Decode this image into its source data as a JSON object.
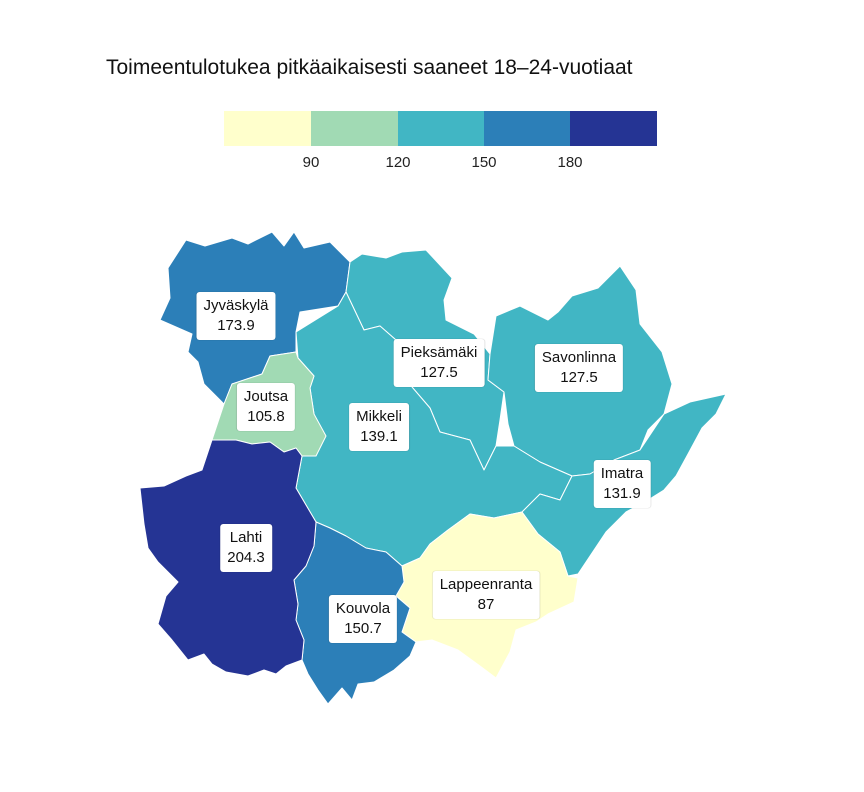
{
  "title": "Toimeentulotukea pitkäaikaisesti saaneet 18–24-vuotiaat",
  "legend": {
    "colors": [
      "#ffffcc",
      "#a1dab4",
      "#41b6c4",
      "#2c7fb8",
      "#253494"
    ],
    "ticks": [
      "90",
      "120",
      "150",
      "180"
    ]
  },
  "regions": [
    {
      "name": "Jyväskylä",
      "value": "173.9",
      "color": "#2c7fb8"
    },
    {
      "name": "Joutsa",
      "value": "105.8",
      "color": "#a1dab4"
    },
    {
      "name": "Pieksämäki",
      "value": "127.5",
      "color": "#41b6c4"
    },
    {
      "name": "Savonlinna",
      "value": "127.5",
      "color": "#41b6c4"
    },
    {
      "name": "Mikkeli",
      "value": "139.1",
      "color": "#41b6c4"
    },
    {
      "name": "Imatra",
      "value": "131.9",
      "color": "#41b6c4"
    },
    {
      "name": "Lahti",
      "value": "204.3",
      "color": "#253494"
    },
    {
      "name": "Lappeenranta",
      "value": "87",
      "color": "#ffffcc"
    },
    {
      "name": "Kouvola",
      "value": "150.7",
      "color": "#2c7fb8"
    }
  ]
}
